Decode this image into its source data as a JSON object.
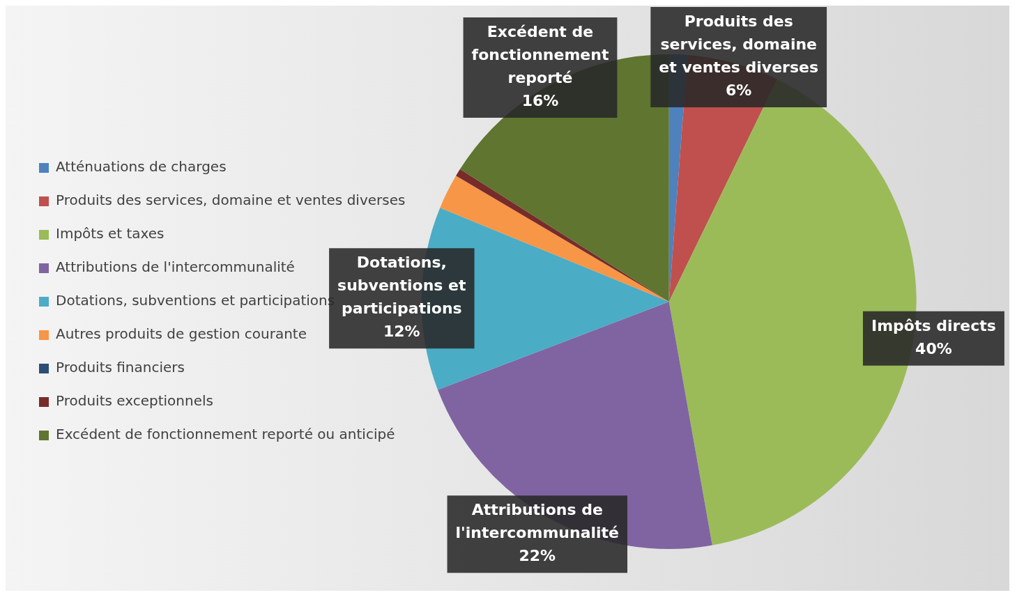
{
  "chart_data": {
    "type": "pie",
    "categories": [
      "Atténuations de charges",
      "Produits des services, domaine et ventes diverses",
      "Impôts et taxes",
      "Attributions de l'intercommunalité",
      "Dotations, subventions et participations",
      "Autres produits de gestion courante",
      "Produits financiers",
      "Produits exceptionnels",
      "Excédent de fonctionnement reporté ou anticipé"
    ],
    "values": [
      1.2,
      6,
      40,
      22,
      12,
      2.3,
      0,
      0.5,
      16
    ],
    "colors": [
      "#4f81bd",
      "#c0504d",
      "#9bbb59",
      "#8064a2",
      "#4bacc6",
      "#f79646",
      "#2c4d75",
      "#772c2a",
      "#5f7530"
    ],
    "value_labels": [
      null,
      "Produits des services, domaine et ventes diverses 6%",
      "Impôts directs 40%",
      "Attributions de l'intercommunalité 22%",
      "Dotations, subventions et participations 12%",
      null,
      null,
      null,
      "Excédent de fonctionnement reporté 16%"
    ],
    "legend": "left"
  }
}
